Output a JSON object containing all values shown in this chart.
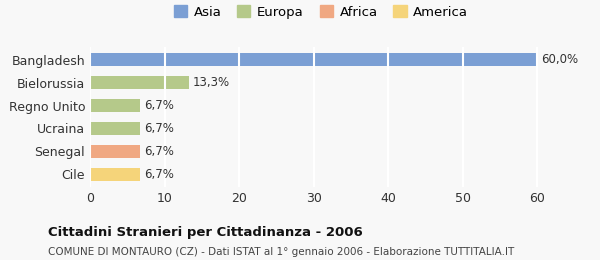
{
  "categories": [
    "Bangladesh",
    "Bielorussia",
    "Regno Unito",
    "Ucraina",
    "Senegal",
    "Cile"
  ],
  "values": [
    60.0,
    13.3,
    6.7,
    6.7,
    6.7,
    6.7
  ],
  "labels": [
    "60,0%",
    "13,3%",
    "6,7%",
    "6,7%",
    "6,7%",
    "6,7%"
  ],
  "colors": [
    "#7b9fd4",
    "#b5c98a",
    "#b5c98a",
    "#b5c98a",
    "#f0a882",
    "#f5d47a"
  ],
  "legend": [
    {
      "label": "Asia",
      "color": "#7b9fd4"
    },
    {
      "label": "Europa",
      "color": "#b5c98a"
    },
    {
      "label": "Africa",
      "color": "#f0a882"
    },
    {
      "label": "America",
      "color": "#f5d47a"
    }
  ],
  "xlim": [
    0,
    62
  ],
  "xticks": [
    0,
    10,
    20,
    30,
    40,
    50,
    60
  ],
  "title_bold": "Cittadini Stranieri per Cittadinanza - 2006",
  "subtitle": "COMUNE DI MONTAURO (CZ) - Dati ISTAT al 1° gennaio 2006 - Elaborazione TUTTITALIA.IT",
  "background_color": "#f8f8f8",
  "grid_color": "#ffffff",
  "bar_height": 0.55
}
